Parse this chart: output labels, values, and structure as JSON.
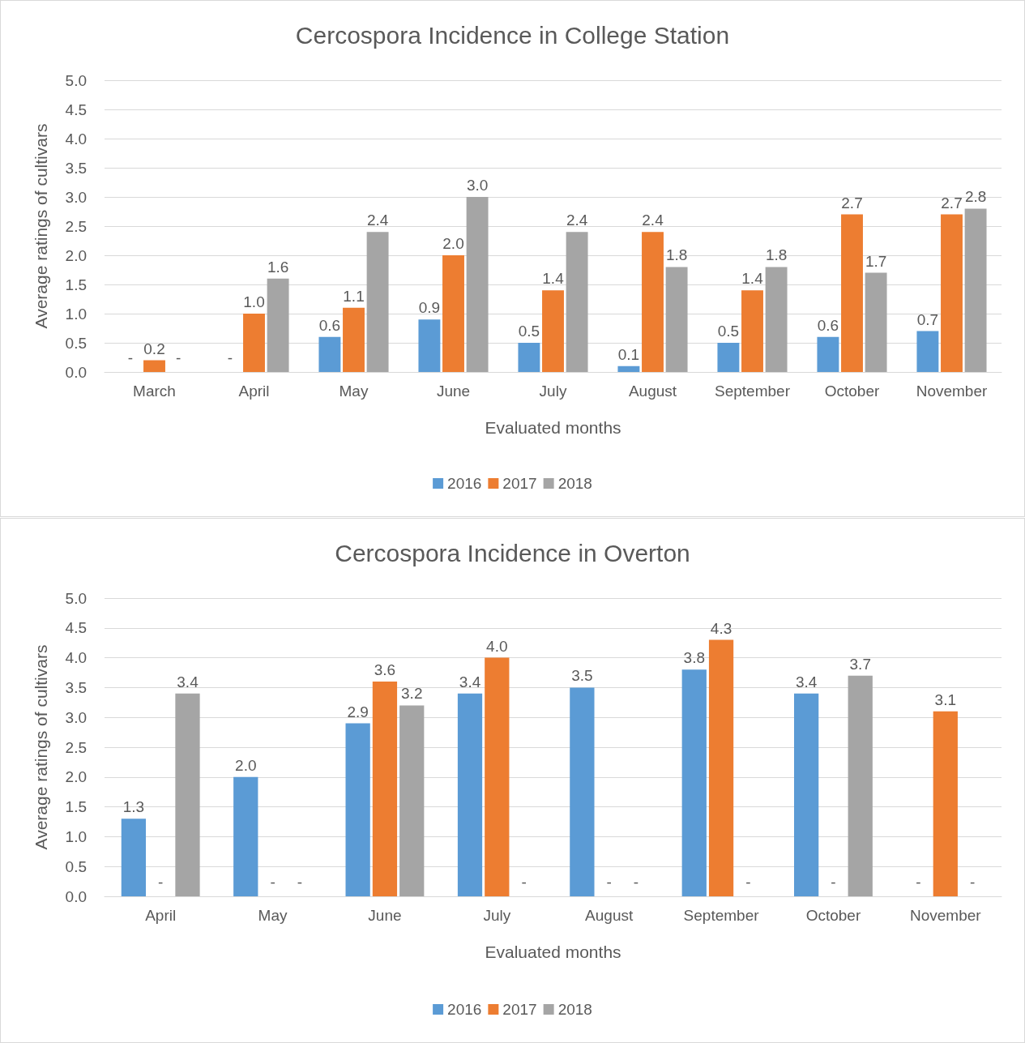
{
  "chart_data": [
    {
      "type": "bar",
      "title": "Cercospora Incidence in College Station",
      "xlabel": "Evaluated months",
      "ylabel": "Average ratings of cultivars",
      "categories": [
        "March",
        "April",
        "May",
        "June",
        "July",
        "August",
        "September",
        "October",
        "November"
      ],
      "series": [
        {
          "name": "2016",
          "color": "#5b9bd5",
          "values": [
            null,
            null,
            0.6,
            0.9,
            0.5,
            0.1,
            0.5,
            0.6,
            0.7
          ],
          "value_labels": [
            "-",
            "-",
            "0.6",
            "0.9",
            "0.5",
            "0.1",
            "0.5",
            "0.6",
            "0.7"
          ]
        },
        {
          "name": "2017",
          "color": "#ed7d31",
          "values": [
            0.2,
            1.0,
            1.1,
            2.0,
            1.4,
            2.4,
            1.4,
            2.7,
            2.7
          ],
          "value_labels": [
            "0.2",
            "1.0",
            "1.1",
            "2.0",
            "1.4",
            "2.4",
            "1.4",
            "2.7",
            "2.7"
          ]
        },
        {
          "name": "2018",
          "color": "#a5a5a5",
          "values": [
            null,
            1.6,
            2.4,
            3.0,
            2.4,
            1.8,
            1.8,
            1.7,
            2.8
          ],
          "value_labels": [
            "-",
            "1.6",
            "2.4",
            "3.0",
            "2.4",
            "1.8",
            "1.8",
            "1.7",
            "2.8"
          ]
        }
      ],
      "ylim": [
        0,
        5
      ],
      "yticks": [
        {
          "value": 0,
          "label": "0.0"
        },
        {
          "value": 0.5,
          "label": "0.5"
        },
        {
          "value": 1,
          "label": "1.0"
        },
        {
          "value": 1.5,
          "label": "1.5"
        },
        {
          "value": 2,
          "label": "2.0"
        },
        {
          "value": 2.5,
          "label": "2.5"
        },
        {
          "value": 3,
          "label": "3.0"
        },
        {
          "value": 3.5,
          "label": "3.5"
        },
        {
          "value": 4,
          "label": "4.0"
        },
        {
          "value": 4.5,
          "label": "4.5"
        },
        {
          "value": 5,
          "label": "5.0"
        }
      ],
      "grid": "y",
      "legend": "bottom"
    },
    {
      "type": "bar",
      "title": "Cercospora Incidence in Overton",
      "xlabel": "Evaluated months",
      "ylabel": "Average ratings of cultivars",
      "categories": [
        "April",
        "May",
        "June",
        "July",
        "August",
        "September",
        "October",
        "November"
      ],
      "series": [
        {
          "name": "2016",
          "color": "#5b9bd5",
          "values": [
            1.3,
            2.0,
            2.9,
            3.4,
            3.5,
            3.8,
            3.4,
            null
          ],
          "value_labels": [
            "1.3",
            "2.0",
            "2.9",
            "3.4",
            "3.5",
            "3.8",
            "3.4",
            "-"
          ]
        },
        {
          "name": "2017",
          "color": "#ed7d31",
          "values": [
            null,
            null,
            3.6,
            4.0,
            null,
            4.3,
            null,
            3.1
          ],
          "value_labels": [
            "-",
            "-",
            "3.6",
            "4.0",
            "-",
            "4.3",
            "-",
            "3.1"
          ]
        },
        {
          "name": "2018",
          "color": "#a5a5a5",
          "values": [
            3.4,
            null,
            3.2,
            null,
            null,
            null,
            3.7,
            null
          ],
          "value_labels": [
            "3.4",
            "-",
            "3.2",
            "-",
            "-",
            "-",
            "3.7",
            "-"
          ]
        }
      ],
      "ylim": [
        0,
        5
      ],
      "yticks": [
        {
          "value": 0,
          "label": "0.0"
        },
        {
          "value": 0.5,
          "label": "0.5"
        },
        {
          "value": 1,
          "label": "1.0"
        },
        {
          "value": 1.5,
          "label": "1.5"
        },
        {
          "value": 2,
          "label": "2.0"
        },
        {
          "value": 2.5,
          "label": "2.5"
        },
        {
          "value": 3,
          "label": "3.0"
        },
        {
          "value": 3.5,
          "label": "3.5"
        },
        {
          "value": 4,
          "label": "4.0"
        },
        {
          "value": 4.5,
          "label": "4.5"
        },
        {
          "value": 5,
          "label": "5.0"
        }
      ],
      "grid": "y",
      "legend": "bottom"
    }
  ]
}
